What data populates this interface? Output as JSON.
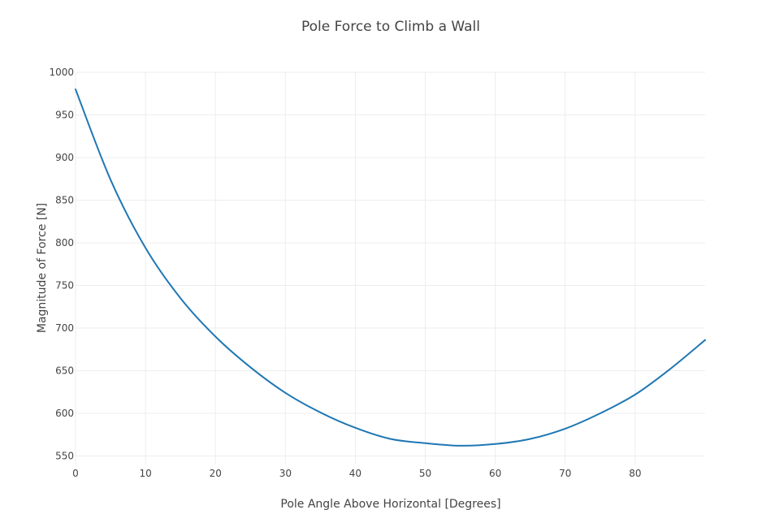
{
  "chart_data": {
    "type": "line",
    "title": "Pole Force to Climb a Wall",
    "xlabel": "Pole Angle Above Horizontal [Degrees]",
    "ylabel": "Magnitude of Force [N]",
    "xlim": [
      0,
      90
    ],
    "ylim": [
      540,
      1000
    ],
    "x_ticks": [
      0,
      10,
      20,
      30,
      40,
      50,
      60,
      70,
      80
    ],
    "y_ticks": [
      550,
      600,
      650,
      700,
      750,
      800,
      850,
      900,
      950,
      1000
    ],
    "grid": true,
    "legend": "none",
    "line_color": "#1f77b4",
    "x": [
      0,
      5,
      10,
      15,
      20,
      25,
      30,
      35,
      40,
      45,
      50,
      55,
      60,
      65,
      70,
      75,
      80,
      85,
      90
    ],
    "y": [
      980,
      874,
      794,
      735,
      690,
      654,
      624,
      601,
      583,
      570,
      565,
      562,
      564,
      570,
      582,
      600,
      622,
      652,
      686
    ]
  }
}
